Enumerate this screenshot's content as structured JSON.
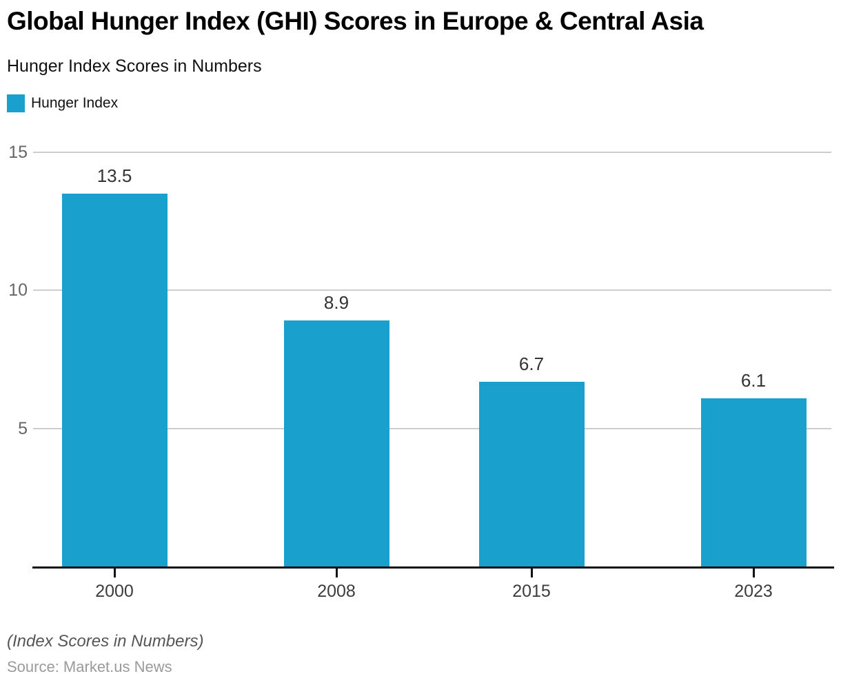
{
  "header": {
    "title": "Global Hunger Index (GHI) Scores in Europe & Central Asia",
    "subtitle": "Hunger Index Scores in Numbers"
  },
  "legend": {
    "label": "Hunger Index",
    "color": "#19A0CD"
  },
  "footer": {
    "note": "(Index Scores in Numbers)",
    "source": "Source: Market.us News"
  },
  "chart_data": {
    "type": "bar",
    "title": "Global Hunger Index (GHI) Scores in Europe & Central Asia",
    "subtitle": "Hunger Index Scores in Numbers",
    "series_name": "Hunger Index",
    "categories": [
      "2000",
      "2008",
      "2015",
      "2023"
    ],
    "values": [
      13.5,
      8.9,
      6.7,
      6.1
    ],
    "data_labels": [
      "13.5",
      "8.9",
      "6.7",
      "6.1"
    ],
    "xlabel": "",
    "ylabel": "",
    "ylim": [
      0,
      15
    ],
    "yticks": [
      5,
      10,
      15
    ],
    "grid": true,
    "legend_position": "top-left",
    "bar_color": "#19A0CD",
    "gridline_color": "#cdcdcd",
    "axis_color": "#111111"
  }
}
